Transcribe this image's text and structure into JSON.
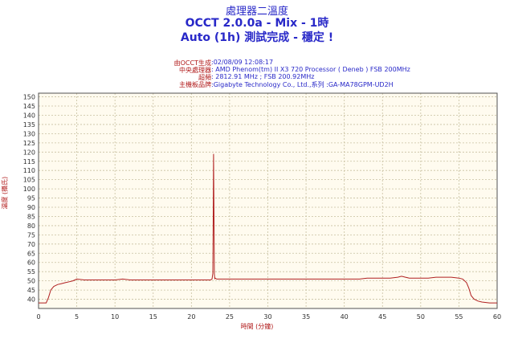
{
  "title": {
    "line1": "處理器二溫度",
    "line2": "OCCT 2.0.0a - Mix - 1時",
    "line3": "Auto (1h) 測試完成 - 穩定 !"
  },
  "info": [
    {
      "label": "由OCCT生成",
      "value": ":02/08/09 12:08:17"
    },
    {
      "label": "中央處理器",
      "value": ": AMD Phenom(tm) II X3 720 Processor ( Deneb ) FSB 200MHz"
    },
    {
      "label": "超頻",
      "value": ": 2812.91 MHz ; FSB 200.92MHz"
    },
    {
      "label": "主機板品牌",
      "value": ":Gigabyte Technology Co., Ltd.,系列 :GA-MA78GPM-UD2H"
    }
  ],
  "chart_data": {
    "type": "line",
    "xlabel": "時間 (分鐘)",
    "ylabel": "溫度 (攝氏)",
    "xlim": [
      0,
      60
    ],
    "ylim": [
      35,
      152
    ],
    "xticks": [
      0,
      5,
      10,
      15,
      20,
      25,
      30,
      35,
      40,
      45,
      50,
      55,
      60
    ],
    "yticks": [
      40,
      45,
      50,
      55,
      60,
      65,
      70,
      75,
      80,
      85,
      90,
      95,
      100,
      105,
      110,
      115,
      120,
      125,
      130,
      135,
      140,
      145,
      150
    ],
    "grid": true,
    "colors": {
      "line": "#b02020",
      "plot_bg": "#fffbef",
      "grid": "#c8c0a0",
      "axis_text": "#b01818"
    },
    "series": [
      {
        "x": [
          0,
          0.6,
          1.0,
          1.3,
          1.6,
          2.0,
          2.5,
          3,
          3.5,
          4,
          4.5,
          5,
          6,
          7,
          8,
          9,
          10,
          11,
          12,
          13,
          14,
          15,
          16,
          17,
          18,
          19,
          20,
          21,
          22,
          22.5,
          22.7,
          22.8,
          22.85,
          22.9,
          22.95,
          23.0,
          23.05,
          23.1,
          23.3,
          23.6,
          24,
          25,
          26,
          27,
          28,
          29,
          30,
          31,
          32,
          33,
          34,
          35,
          36,
          37,
          38,
          39,
          40,
          41,
          42,
          43,
          44,
          45,
          46,
          47,
          47.5,
          48,
          48.5,
          49,
          50,
          51,
          52,
          53,
          54,
          55,
          55.5,
          56,
          56.3,
          56.6,
          57,
          57.5,
          58,
          59,
          60
        ],
        "y": [
          38,
          38,
          38,
          41,
          45,
          47,
          48,
          48.5,
          49,
          49.5,
          50,
          51,
          50.5,
          50.5,
          50.5,
          50.5,
          50.5,
          51,
          50.5,
          50.5,
          50.5,
          50.5,
          50.5,
          50.5,
          50.5,
          50.5,
          50.5,
          50.5,
          50.5,
          50.5,
          51,
          54,
          86,
          119,
          88,
          54,
          51,
          51.5,
          51,
          51,
          51,
          51,
          51,
          51,
          51,
          51,
          51,
          51,
          51,
          51,
          51,
          51,
          51,
          51,
          51,
          51,
          51,
          51,
          51,
          51.5,
          51.5,
          51.5,
          51.5,
          52,
          52.5,
          52,
          51.5,
          51.5,
          51.5,
          51.5,
          52,
          52,
          52,
          51.5,
          51,
          49,
          46,
          42,
          40,
          39,
          38.5,
          38,
          38
        ]
      }
    ]
  }
}
